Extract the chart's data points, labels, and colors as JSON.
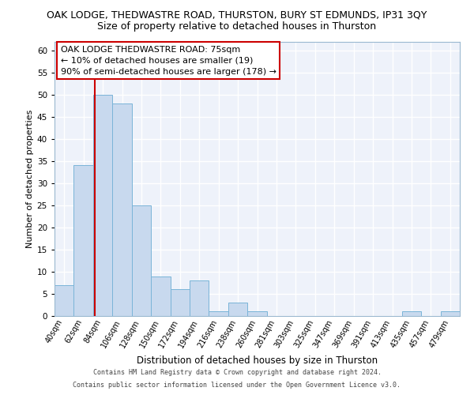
{
  "title": "OAK LODGE, THEDWASTRE ROAD, THURSTON, BURY ST EDMUNDS, IP31 3QY",
  "subtitle": "Size of property relative to detached houses in Thurston",
  "xlabel": "Distribution of detached houses by size in Thurston",
  "ylabel": "Number of detached properties",
  "bin_labels": [
    "40sqm",
    "62sqm",
    "84sqm",
    "106sqm",
    "128sqm",
    "150sqm",
    "172sqm",
    "194sqm",
    "216sqm",
    "238sqm",
    "260sqm",
    "281sqm",
    "303sqm",
    "325sqm",
    "347sqm",
    "369sqm",
    "391sqm",
    "413sqm",
    "435sqm",
    "457sqm",
    "479sqm"
  ],
  "bar_values": [
    7,
    34,
    50,
    48,
    25,
    9,
    6,
    8,
    1,
    3,
    1,
    0,
    0,
    0,
    0,
    0,
    0,
    0,
    1,
    0,
    1
  ],
  "bar_color": "#c8d9ee",
  "bar_edge_color": "#7ab4d8",
  "vline_color": "#cc0000",
  "ylim": [
    0,
    62
  ],
  "yticks": [
    0,
    5,
    10,
    15,
    20,
    25,
    30,
    35,
    40,
    45,
    50,
    55,
    60
  ],
  "annotation_box_text": "OAK LODGE THEDWASTRE ROAD: 75sqm\n← 10% of detached houses are smaller (19)\n90% of semi-detached houses are larger (178) →",
  "footer_line1": "Contains HM Land Registry data © Crown copyright and database right 2024.",
  "footer_line2": "Contains public sector information licensed under the Open Government Licence v3.0.",
  "bg_color": "#eef2fa",
  "grid_color": "#ffffff",
  "fig_bg_color": "#ffffff",
  "title_fontsize": 9,
  "subtitle_fontsize": 9,
  "xlabel_fontsize": 8.5,
  "ylabel_fontsize": 8,
  "tick_fontsize": 7,
  "annotation_fontsize": 8,
  "footer_fontsize": 6
}
